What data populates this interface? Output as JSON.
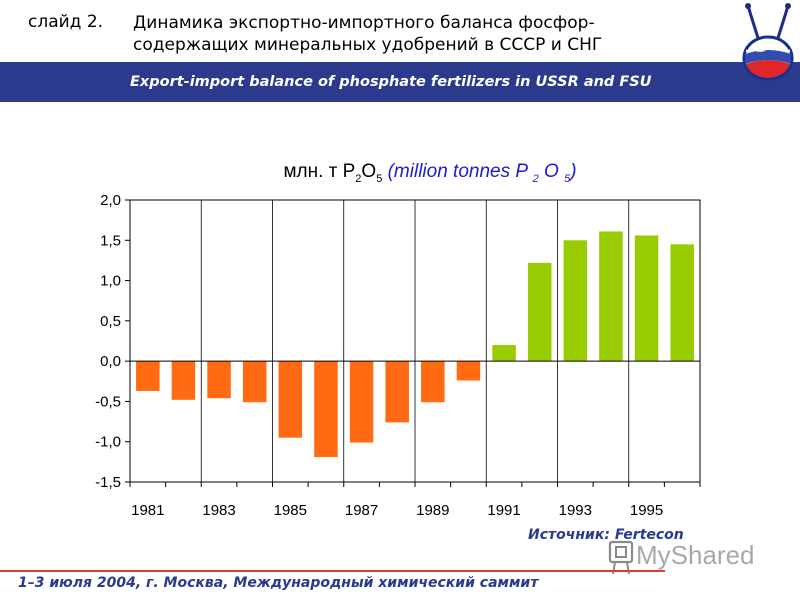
{
  "header": {
    "slide_label": "слайд 2.",
    "title_ru_line1": "Динамика экспортно-импортного баланса фосфор-",
    "title_ru_line2": "содержащих минеральных удобрений в СССР и СНГ",
    "title_en": "Export-import balance of phosphate fertilizers in USSR and FSU"
  },
  "colors": {
    "band": "#2b3a8c",
    "negative_bar": "#ff6a13",
    "positive_bar": "#99cc00",
    "footer_line": "#e03a2c",
    "accent_text": "#2b3a8c"
  },
  "chart_data": {
    "type": "bar",
    "title_ru": "млн. т P",
    "title_ru_mid": "O",
    "title_sub2": "2",
    "title_sub5": "5",
    "title_en_prefix": "(million tonnes P ",
    "title_en_mid": " O ",
    "title_en_suffix": ")",
    "categories": [
      "1981",
      "1982",
      "1983",
      "1984",
      "1985",
      "1986",
      "1987",
      "1988",
      "1989",
      "1990",
      "1991",
      "1992",
      "1993",
      "1994",
      "1995",
      "1996"
    ],
    "values": [
      -0.37,
      -0.48,
      -0.46,
      -0.51,
      -0.95,
      -1.19,
      -1.01,
      -0.76,
      -0.51,
      -0.24,
      0.2,
      1.22,
      1.5,
      1.61,
      1.56,
      1.45
    ],
    "ylim": [
      -1.5,
      2.0
    ],
    "yticks": [
      "2,0",
      "1,5",
      "1,0",
      "0,5",
      "0,0",
      "-0,5",
      "-1,0",
      "-1,5"
    ],
    "ytick_values": [
      2.0,
      1.5,
      1.0,
      0.5,
      0.0,
      -0.5,
      -1.0,
      -1.5
    ],
    "xtick_labels": [
      "1981",
      "1983",
      "1985",
      "1987",
      "1989",
      "1991",
      "1993",
      "1995"
    ],
    "grid": "vertical",
    "legend": "none"
  },
  "source": "Источник: Fertecon",
  "footer": "1–3 июля 2004, г. Москва, Международный химический саммит"
}
